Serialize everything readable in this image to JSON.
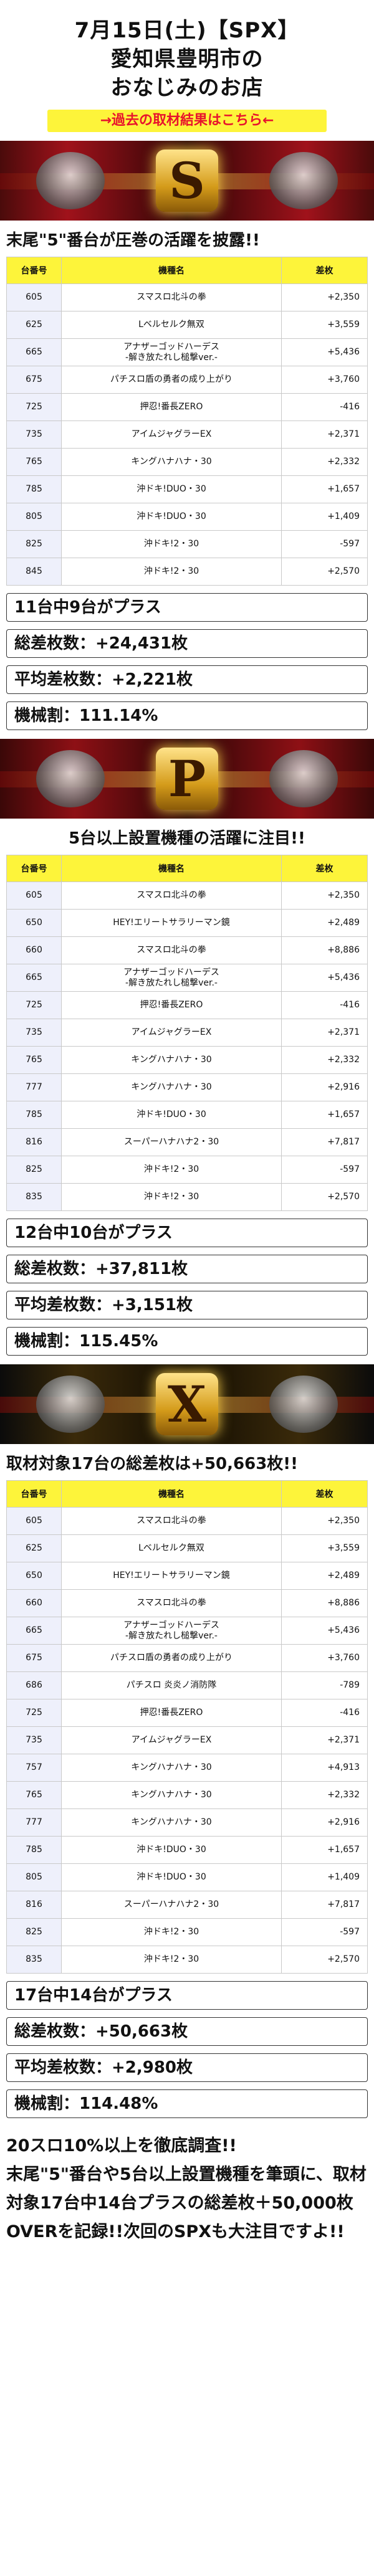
{
  "header": {
    "line1": "7月15日(土)【SPX】",
    "line2": "愛知県豊明市の",
    "line3": "おなじみのお店",
    "past_link": "→過去の取材結果はこちら←"
  },
  "table_headers": {
    "no": "台番号",
    "name": "機種名",
    "diff": "差枚"
  },
  "sections": [
    {
      "banner_letter": "S",
      "title": "末尾\"5\"番台が圧巻の活躍を披露!!",
      "rows": [
        [
          "605",
          "スマスロ北斗の拳",
          "+2,350"
        ],
        [
          "625",
          "Lベルセルク無双",
          "+3,559"
        ],
        [
          "665",
          "アナザーゴッドハーデス\n-解き放たれし槌撃ver.-",
          "+5,436"
        ],
        [
          "675",
          "パチスロ盾の勇者の成り上がり",
          "+3,760"
        ],
        [
          "725",
          "押忍!番長ZERO",
          "-416"
        ],
        [
          "735",
          "アイムジャグラーEX",
          "+2,371"
        ],
        [
          "765",
          "キングハナハナ・30",
          "+2,332"
        ],
        [
          "785",
          "沖ドキ!DUO・30",
          "+1,657"
        ],
        [
          "805",
          "沖ドキ!DUO・30",
          "+1,409"
        ],
        [
          "825",
          "沖ドキ!2・30",
          "-597"
        ],
        [
          "845",
          "沖ドキ!2・30",
          "+2,570"
        ]
      ],
      "summary": [
        "11台中9台がプラス",
        "総差枚数：+24,431枚",
        "平均差枚数：+2,221枚",
        "機械割：111.14%"
      ]
    },
    {
      "banner_letter": "P",
      "title": "5台以上設置機種の活躍に注目!!",
      "rows": [
        [
          "605",
          "スマスロ北斗の拳",
          "+2,350"
        ],
        [
          "650",
          "HEY!エリートサラリーマン鏡",
          "+2,489"
        ],
        [
          "660",
          "スマスロ北斗の拳",
          "+8,886"
        ],
        [
          "665",
          "アナザーゴッドハーデス\n-解き放たれし槌撃ver.-",
          "+5,436"
        ],
        [
          "725",
          "押忍!番長ZERO",
          "-416"
        ],
        [
          "735",
          "アイムジャグラーEX",
          "+2,371"
        ],
        [
          "765",
          "キングハナハナ・30",
          "+2,332"
        ],
        [
          "777",
          "キングハナハナ・30",
          "+2,916"
        ],
        [
          "785",
          "沖ドキ!DUO・30",
          "+1,657"
        ],
        [
          "816",
          "スーパーハナハナ2・30",
          "+7,817"
        ],
        [
          "825",
          "沖ドキ!2・30",
          "-597"
        ],
        [
          "835",
          "沖ドキ!2・30",
          "+2,570"
        ]
      ],
      "summary": [
        "12台中10台がプラス",
        "総差枚数：+37,811枚",
        "平均差枚数：+3,151枚",
        "機械割：115.45%"
      ]
    },
    {
      "banner_letter": "X",
      "title": "取材対象17台の総差枚は+50,663枚!!",
      "rows": [
        [
          "605",
          "スマスロ北斗の拳",
          "+2,350"
        ],
        [
          "625",
          "Lベルセルク無双",
          "+3,559"
        ],
        [
          "650",
          "HEY!エリートサラリーマン鏡",
          "+2,489"
        ],
        [
          "660",
          "スマスロ北斗の拳",
          "+8,886"
        ],
        [
          "665",
          "アナザーゴッドハーデス\n-解き放たれし槌撃ver.-",
          "+5,436"
        ],
        [
          "675",
          "パチスロ盾の勇者の成り上がり",
          "+3,760"
        ],
        [
          "686",
          "パチスロ 炎炎ノ消防隊",
          "-789"
        ],
        [
          "725",
          "押忍!番長ZERO",
          "-416"
        ],
        [
          "735",
          "アイムジャグラーEX",
          "+2,371"
        ],
        [
          "757",
          "キングハナハナ・30",
          "+4,913"
        ],
        [
          "765",
          "キングハナハナ・30",
          "+2,332"
        ],
        [
          "777",
          "キングハナハナ・30",
          "+2,916"
        ],
        [
          "785",
          "沖ドキ!DUO・30",
          "+1,657"
        ],
        [
          "805",
          "沖ドキ!DUO・30",
          "+1,409"
        ],
        [
          "816",
          "スーパーハナハナ2・30",
          "+7,817"
        ],
        [
          "825",
          "沖ドキ!2・30",
          "-597"
        ],
        [
          "835",
          "沖ドキ!2・30",
          "+2,570"
        ]
      ],
      "summary": [
        "17台中14台がプラス",
        "総差枚数：+50,663枚",
        "平均差枚数：+2,980枚",
        "機械割：114.48%"
      ]
    }
  ],
  "closing": "20スロ10%以上を徹底調査!!\n末尾\"5\"番台や5台以上設置機種を筆頭に、取材対象17台中14台プラスの総差枚＋50,000枚OVERを記録!!次回のSPXも大注目ですよ!!"
}
